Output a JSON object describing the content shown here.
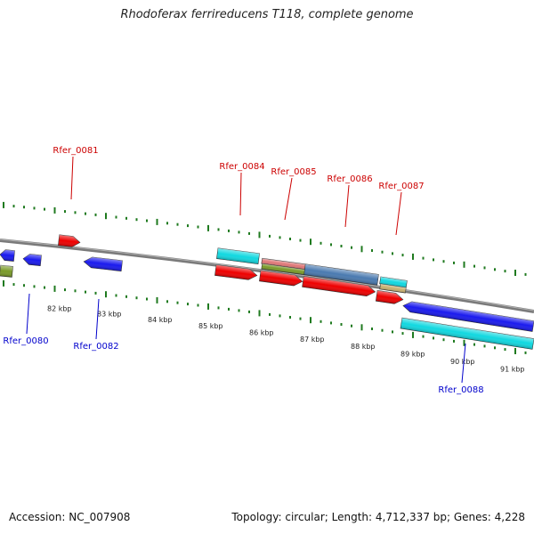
{
  "title": "Rhodoferax ferrireducens T118, complete genome",
  "footer": {
    "accession": "Accession: NC_007908",
    "summary": "Topology: circular; Length: 4,712,337 bp; Genes: 4,228"
  },
  "colors": {
    "forward_label": "#cc0000",
    "reverse_label": "#0000cc",
    "tick": "#1f7a1f",
    "backbone": "#7a7a7a",
    "cds_red": "#ee0000",
    "cds_blue": "#1a1aee",
    "rna_cyan": "#11d8e0",
    "olive": "#7a9a2a",
    "steel": "#4a7ab0",
    "pink": "#e07878",
    "tan": "#c8b070"
  },
  "scale_labels": [
    "82 kbp",
    "83 kbp",
    "84 kbp",
    "85 kbp",
    "86 kbp",
    "87 kbp",
    "88 kbp",
    "89 kbp",
    "90 kbp",
    "91 kbp"
  ],
  "forward_genes": [
    "Rfer_0081",
    "Rfer_0084",
    "Rfer_0085",
    "Rfer_0086",
    "Rfer_0087"
  ],
  "reverse_genes": [
    "Rfer_0080",
    "Rfer_0082",
    "Rfer_0088"
  ]
}
